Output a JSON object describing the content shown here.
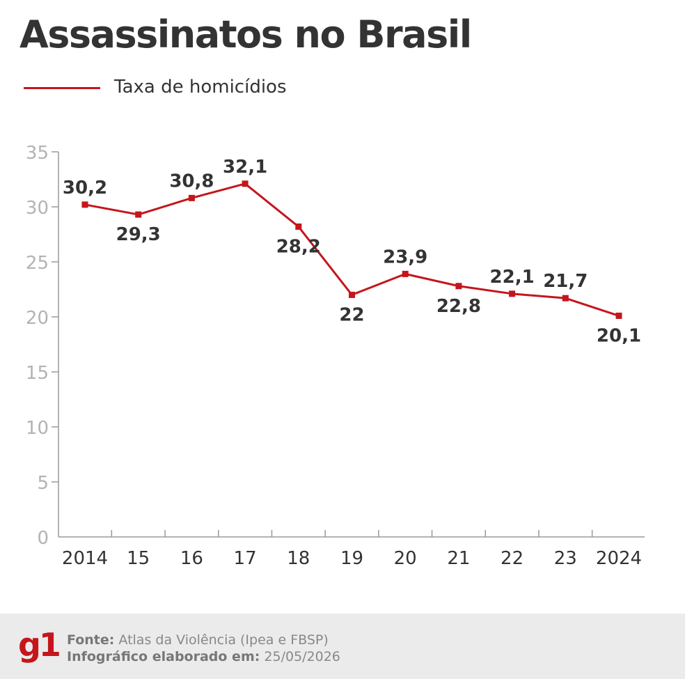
{
  "title": "Assassinatos no Brasil",
  "legend": {
    "label": "Taxa de homicídios",
    "color": "#c4161c"
  },
  "chart_data": {
    "type": "line",
    "categories": [
      "2014",
      "15",
      "16",
      "17",
      "18",
      "19",
      "20",
      "21",
      "22",
      "23",
      "2024"
    ],
    "series": [
      {
        "name": "Taxa de homicídios",
        "color": "#c4161c",
        "values": [
          30.2,
          29.3,
          30.8,
          32.1,
          28.2,
          22,
          23.9,
          22.8,
          22.1,
          21.7,
          20.1
        ],
        "labels": [
          "30,2",
          "29,3",
          "30,8",
          "32,1",
          "28,2",
          "22",
          "23,9",
          "22,8",
          "22,1",
          "21,7",
          "20,1"
        ],
        "label_position": [
          "above",
          "below",
          "above",
          "above",
          "below",
          "below",
          "above",
          "below",
          "above",
          "above",
          "below"
        ]
      }
    ],
    "yticks": [
      "0",
      "5",
      "10",
      "15",
      "20",
      "25",
      "30",
      "35"
    ],
    "ylim": [
      0,
      35
    ],
    "grid": false,
    "xlabel": "",
    "ylabel": ""
  },
  "footer": {
    "logo": "g1",
    "source_label": "Fonte:",
    "source_value": "Atlas da Violência (Ipea e FBSP)",
    "date_label": "Infográfico elaborado em:",
    "date_value": "25/05/2026"
  }
}
